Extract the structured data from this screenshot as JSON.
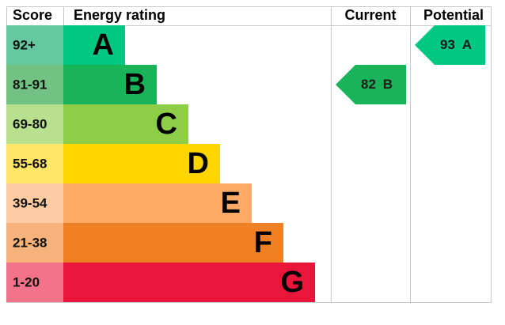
{
  "headers": {
    "score": "Score",
    "rating": "Energy rating",
    "current": "Current",
    "potential": "Potential"
  },
  "bands": [
    {
      "score": "92+",
      "letter": "A",
      "color": "#00c781",
      "light": "#66c8a1"
    },
    {
      "score": "81-91",
      "letter": "B",
      "color": "#19b459",
      "light": "#72c283"
    },
    {
      "score": "69-80",
      "letter": "C",
      "color": "#8dce46",
      "light": "#b9e08f"
    },
    {
      "score": "55-68",
      "letter": "D",
      "color": "#ffd500",
      "light": "#ffe666"
    },
    {
      "score": "39-54",
      "letter": "E",
      "color": "#fcaa65",
      "light": "#fdcca3"
    },
    {
      "score": "21-38",
      "letter": "F",
      "color": "#ef8023",
      "light": "#f5b37b"
    },
    {
      "score": "1-20",
      "letter": "G",
      "color": "#e9153b",
      "light": "#f2738a"
    }
  ],
  "current": {
    "value": 82,
    "letter": "B"
  },
  "potential": {
    "value": 93,
    "letter": "A"
  }
}
